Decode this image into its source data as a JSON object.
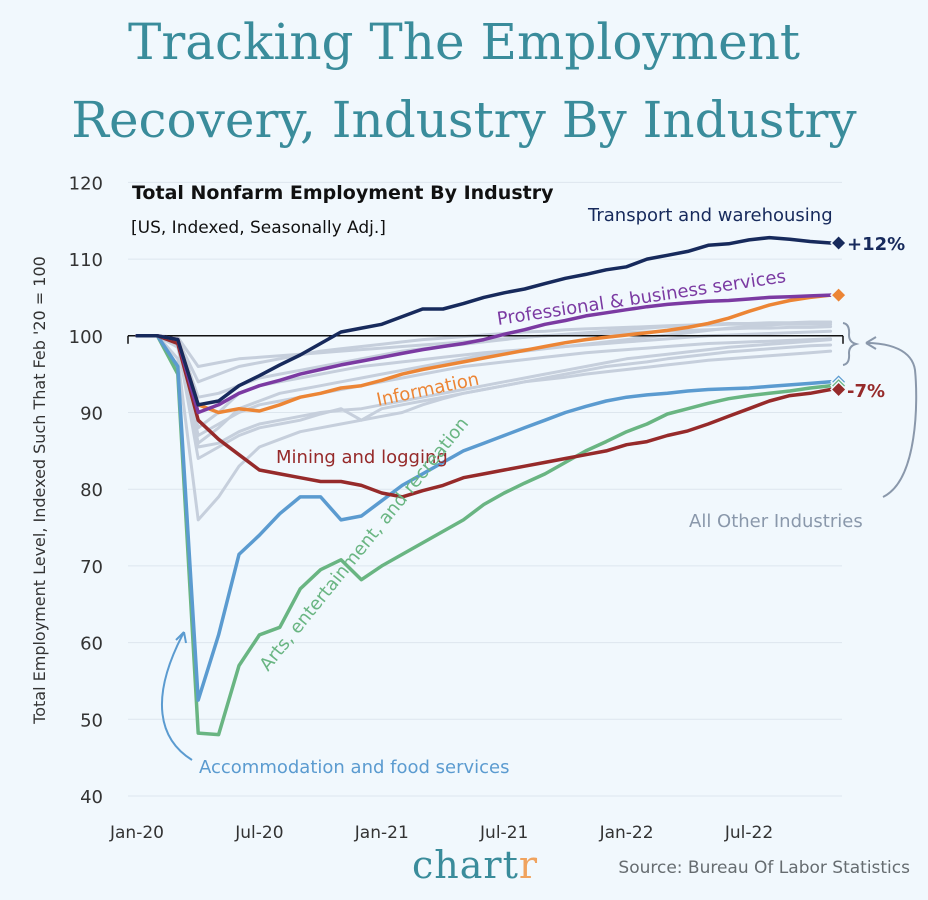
{
  "title": {
    "line1": "Tracking The Employment",
    "line2": "Recovery, Industry By Industry"
  },
  "brand": {
    "name_main": "chart",
    "name_accent": "r"
  },
  "source": "Source: Bureau Of Labor Statistics",
  "chart_data": {
    "type": "line",
    "title": "Total Nonfarm Employment By Industry",
    "subtitle": "[US, Indexed, Seasonally Adj.]",
    "ylabel": "Total Employment Level, Indexed Such That Feb '20 = 100",
    "xlabel": "",
    "ylim": [
      40,
      120
    ],
    "yticks": [
      40,
      50,
      60,
      70,
      80,
      90,
      100,
      110,
      120
    ],
    "xticks": [
      "Jan-20",
      "Jul-20",
      "Jan-21",
      "Jul-21",
      "Jan-22",
      "Jul-22"
    ],
    "x_months": [
      "2020-01",
      "2020-02",
      "2020-03",
      "2020-04",
      "2020-05",
      "2020-06",
      "2020-07",
      "2020-08",
      "2020-09",
      "2020-10",
      "2020-11",
      "2020-12",
      "2021-01",
      "2021-02",
      "2021-03",
      "2021-04",
      "2021-05",
      "2021-06",
      "2021-07",
      "2021-08",
      "2021-09",
      "2021-10",
      "2021-11",
      "2021-12",
      "2022-01",
      "2022-02",
      "2022-03",
      "2022-04",
      "2022-05",
      "2022-06",
      "2022-07",
      "2022-08",
      "2022-09",
      "2022-10",
      "2022-11"
    ],
    "reference_line": 100,
    "grid": true,
    "series": [
      {
        "name": "Transport and warehousing",
        "color": "#172a5c",
        "end_label": "+12%",
        "values": [
          100,
          100,
          99.5,
          91,
          91.5,
          93.5,
          94.8,
          96.2,
          97.5,
          99,
          100.5,
          101,
          101.5,
          102.5,
          103.5,
          103.5,
          104.2,
          105,
          105.6,
          106.1,
          106.8,
          107.5,
          108,
          108.6,
          109,
          110,
          110.5,
          111,
          111.8,
          112,
          112.5,
          112.8,
          112.6,
          112.3,
          112.1
        ]
      },
      {
        "name": "Professional & business services",
        "color": "#7b3aa2",
        "values": [
          100,
          100,
          99.5,
          90,
          91,
          92.5,
          93.5,
          94.2,
          95,
          95.6,
          96.2,
          96.7,
          97.2,
          97.7,
          98.2,
          98.6,
          99,
          99.5,
          100.2,
          100.8,
          101.5,
          102,
          102.6,
          103,
          103.4,
          103.8,
          104.1,
          104.3,
          104.5,
          104.6,
          104.8,
          105,
          105.1,
          105.2,
          105.3
        ]
      },
      {
        "name": "Information",
        "color": "#ec8535",
        "values": [
          100,
          100,
          99.5,
          91,
          90,
          90.5,
          90.2,
          91,
          92,
          92.5,
          93.2,
          93.5,
          94.2,
          95,
          95.6,
          96.1,
          96.6,
          97.1,
          97.6,
          98.1,
          98.6,
          99.1,
          99.5,
          99.8,
          100.1,
          100.4,
          100.7,
          101.1,
          101.6,
          102.3,
          103.2,
          104,
          104.6,
          105,
          105.3
        ]
      },
      {
        "name": "Mining and logging",
        "color": "#962a2a",
        "end_label": "-7%",
        "values": [
          100,
          100,
          99,
          89,
          86.5,
          84.5,
          82.5,
          82,
          81.5,
          81,
          81,
          80.5,
          79.5,
          79,
          79.8,
          80.5,
          81.5,
          82,
          82.5,
          83,
          83.5,
          84,
          84.5,
          85,
          85.8,
          86.2,
          87,
          87.6,
          88.5,
          89.5,
          90.5,
          91.5,
          92.2,
          92.5,
          93
        ]
      },
      {
        "name": "Accommodation and food services",
        "color": "#5b9bd0",
        "values": [
          100,
          100,
          96,
          52.5,
          61,
          71.5,
          74,
          76.8,
          79,
          79,
          76,
          76.5,
          78.5,
          80.5,
          82,
          83.5,
          85,
          86,
          87,
          88,
          89,
          90,
          90.8,
          91.5,
          92,
          92.3,
          92.5,
          92.8,
          93,
          93.1,
          93.2,
          93.4,
          93.6,
          93.8,
          94
        ]
      },
      {
        "name": "Arts, entertainment, and recreation",
        "color": "#69b582",
        "values": [
          100,
          100,
          95,
          48.2,
          48,
          57,
          61,
          62,
          67,
          69.5,
          70.8,
          68.2,
          70,
          71.5,
          73,
          74.5,
          76,
          78,
          79.5,
          80.8,
          82,
          83.5,
          85,
          86.2,
          87.5,
          88.5,
          89.8,
          90.5,
          91.2,
          91.8,
          92.2,
          92.5,
          92.8,
          93.2,
          93.5
        ]
      }
    ],
    "other_industries": {
      "label": "All Other Industries",
      "color": "#c6cfdc",
      "series": [
        [
          100,
          100,
          99.5,
          85.5,
          86,
          87.5,
          88.5,
          89,
          89.5,
          90,
          90.3,
          90.5,
          91,
          91.5,
          92,
          92.5,
          93,
          93.5,
          94,
          94.5,
          95,
          95.5,
          96,
          96.5,
          97,
          97.3,
          97.6,
          97.9,
          98.2,
          98.5,
          98.7,
          98.9,
          99.1,
          99.3,
          99.5
        ],
        [
          100,
          100,
          99,
          84,
          85.5,
          87,
          88,
          88.5,
          89,
          89.8,
          90.5,
          89,
          89.5,
          90,
          91,
          91.8,
          92.5,
          93,
          93.5,
          94,
          94.5,
          95,
          95.5,
          96,
          96.3,
          96.6,
          97,
          97.3,
          97.6,
          97.9,
          98.1,
          98.3,
          98.5,
          98.7,
          98.8
        ],
        [
          100,
          100,
          97,
          76,
          79,
          83,
          85.5,
          86.5,
          87.5,
          88,
          88.5,
          89,
          90.5,
          91,
          91.5,
          92,
          92.5,
          93,
          93.5,
          94,
          94.3,
          94.6,
          95,
          95.3,
          95.6,
          95.9,
          96.2,
          96.5,
          96.8,
          97,
          97.2,
          97.4,
          97.6,
          97.8,
          98
        ],
        [
          100,
          100,
          99.5,
          86,
          88,
          90.5,
          91.5,
          92.5,
          93,
          93.5,
          94,
          94.5,
          95,
          95.5,
          96,
          96.5,
          97,
          97.5,
          97.8,
          98,
          98.3,
          98.6,
          98.9,
          99.2,
          99.5,
          99.8,
          100.1,
          100.4,
          100.7,
          101,
          101.2,
          101.4,
          101.6,
          101.7,
          101.8
        ],
        [
          100,
          100,
          99.8,
          92,
          92.5,
          93.5,
          94.5,
          95,
          95.5,
          96,
          96.5,
          97,
          97.5,
          98,
          98.3,
          98.6,
          98.9,
          99.2,
          99.5,
          99.8,
          100,
          100.2,
          100.4,
          100.6,
          100.8,
          101,
          101.2,
          101.3,
          101.4,
          101.5,
          101.5,
          101.5,
          101.5,
          101.5,
          101.5
        ],
        [
          100,
          100,
          99.5,
          94,
          95,
          96,
          96.5,
          97,
          97.5,
          98,
          98.3,
          98.6,
          98.9,
          99.2,
          99.5,
          99.7,
          99.9,
          100.1,
          100.3,
          100.5,
          100.6,
          100.8,
          100.9,
          101,
          101.1,
          101.2,
          101.3,
          101.4,
          101.5,
          101.6,
          101.6,
          101.7,
          101.7,
          101.8,
          101.8
        ],
        [
          100,
          100,
          99.5,
          88,
          90,
          92.5,
          93.5,
          94,
          94.5,
          95,
          95.5,
          96,
          96.3,
          96.6,
          96.9,
          97.2,
          97.5,
          97.8,
          98,
          98.2,
          98.4,
          98.6,
          98.8,
          99,
          99.2,
          99.4,
          99.6,
          99.8,
          100,
          100.1,
          100.2,
          100.3,
          100.4,
          100.5,
          100.6
        ],
        [
          100,
          100,
          98.5,
          87,
          88.5,
          90,
          91,
          91.5,
          92,
          92.5,
          93,
          93.5,
          94,
          94.5,
          95,
          95.5,
          96,
          96.3,
          96.6,
          96.9,
          97.2,
          97.5,
          97.8,
          98,
          98.2,
          98.4,
          98.6,
          98.8,
          99,
          99.1,
          99.2,
          99.3,
          99.4,
          99.5,
          99.6
        ],
        [
          100,
          100,
          99.8,
          96,
          96.5,
          97,
          97.2,
          97.4,
          97.6,
          97.8,
          98,
          98.2,
          98.4,
          98.6,
          98.8,
          99,
          99.2,
          99.4,
          99.6,
          99.8,
          100,
          100.1,
          100.2,
          100.3,
          100.4,
          100.5,
          100.6,
          100.7,
          100.8,
          100.9,
          101,
          101,
          101.1,
          101.1,
          101.2
        ]
      ]
    }
  }
}
